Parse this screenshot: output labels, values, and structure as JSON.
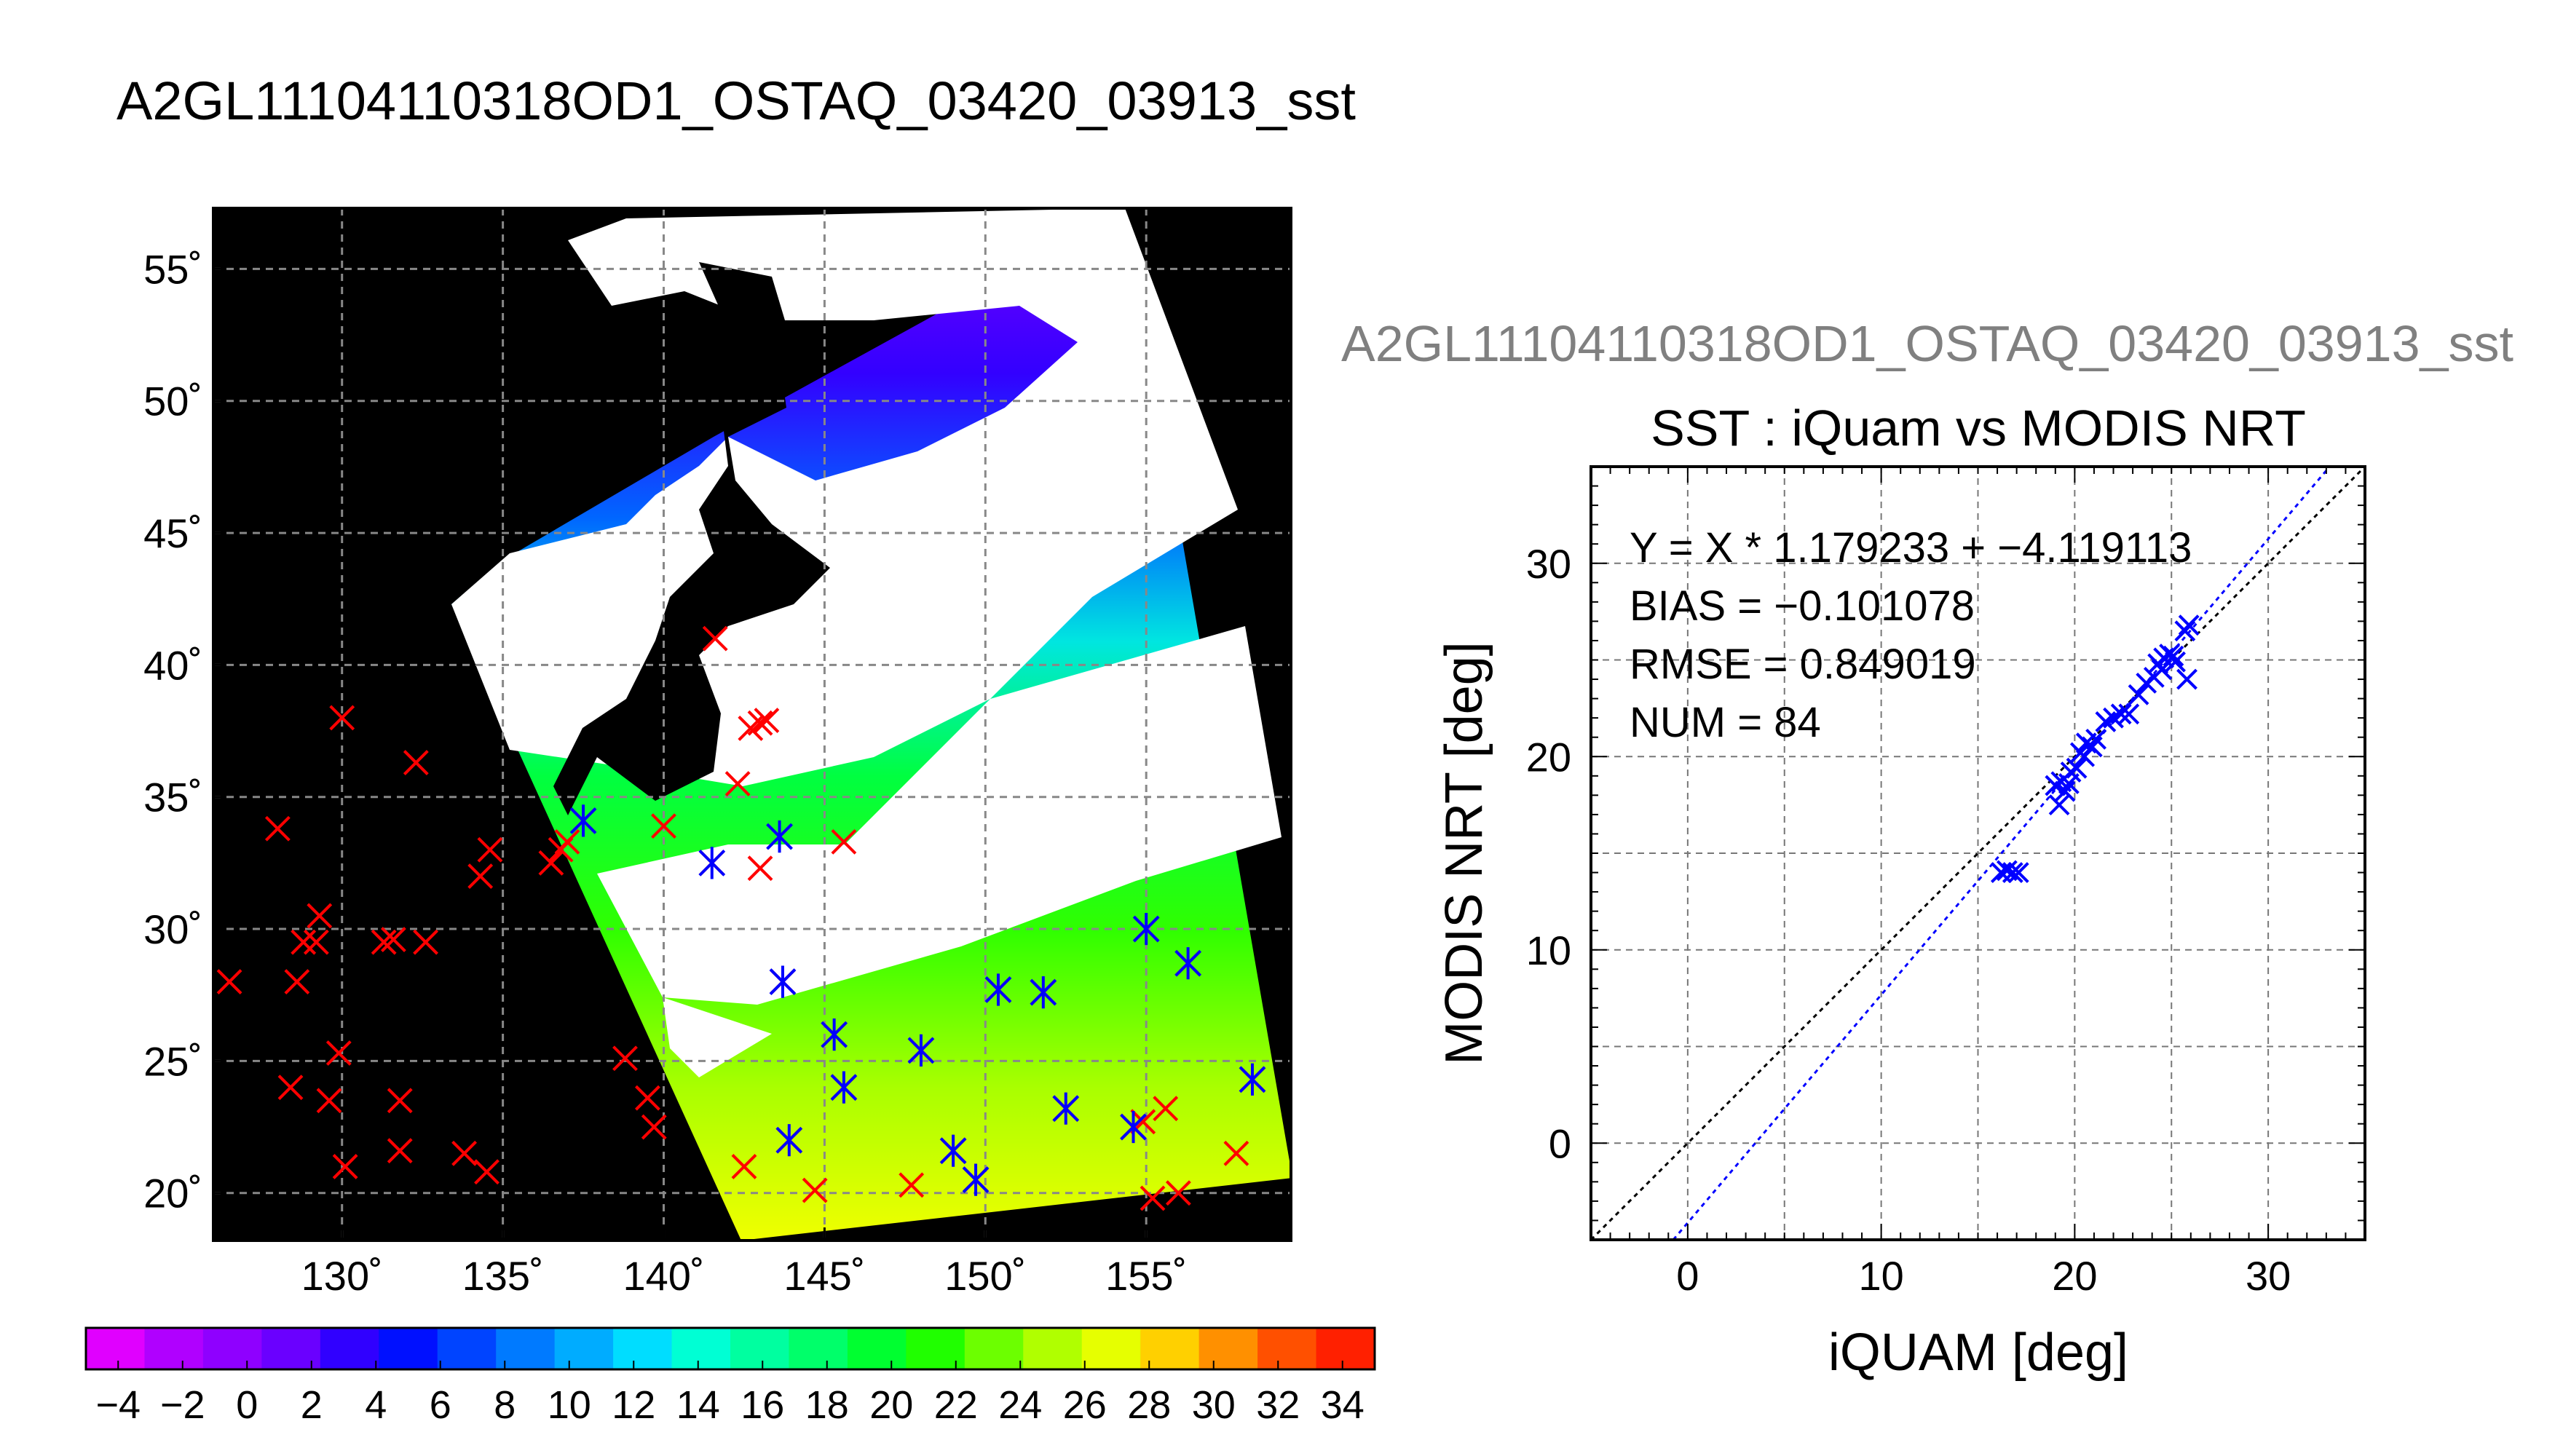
{
  "figure": {
    "title": "A2GL11104110318OD1_OSTAQ_03420_03913_sst",
    "subtitle": "A2GL11104110318OD1_OSTAQ_03420_03913_sst"
  },
  "colors": {
    "land": "#000000",
    "cloud": "#ffffff",
    "buoy_marker": "#ff0000",
    "matchup_marker": "#0000ff",
    "fit_line": "#0000ff",
    "one_to_one_line": "#000000",
    "subtitle": "#808080"
  },
  "chart_data": [
    {
      "type": "map",
      "x_ticks": [
        "130˚",
        "135˚",
        "140˚",
        "145˚",
        "150˚",
        "155˚"
      ],
      "y_ticks": [
        "55˚",
        "50˚",
        "45˚",
        "40˚",
        "35˚",
        "30˚",
        "25˚",
        "20˚"
      ],
      "x_tick_values": [
        130,
        135,
        140,
        145,
        150,
        155
      ],
      "y_tick_values": [
        55,
        50,
        45,
        40,
        35,
        30,
        25,
        20
      ],
      "xlim": [
        126,
        159.5
      ],
      "ylim": [
        18.2,
        57.3
      ],
      "grid": true,
      "in_situ_points": [
        [
          126.5,
          28
        ],
        [
          128,
          33.8
        ],
        [
          128.6,
          28
        ],
        [
          128.4,
          24
        ],
        [
          128.8,
          29.5
        ],
        [
          129.2,
          29.5
        ],
        [
          129.3,
          30.5
        ],
        [
          129.6,
          23.5
        ],
        [
          129.9,
          25.3
        ],
        [
          130,
          38
        ],
        [
          130.1,
          21
        ],
        [
          131.3,
          29.5
        ],
        [
          131.6,
          29.6
        ],
        [
          131.8,
          23.5
        ],
        [
          131.8,
          21.6
        ],
        [
          132.3,
          36.3
        ],
        [
          132.6,
          29.5
        ],
        [
          133.8,
          21.5
        ],
        [
          134.3,
          32
        ],
        [
          134.6,
          33
        ],
        [
          134.5,
          20.8
        ],
        [
          136.5,
          32.5
        ],
        [
          136.8,
          33
        ],
        [
          137,
          33.3
        ],
        [
          137.5,
          34.1
        ],
        [
          138.8,
          25.1
        ],
        [
          139.5,
          23.6
        ],
        [
          139.7,
          22.5
        ],
        [
          140,
          33.9
        ],
        [
          141.6,
          41
        ],
        [
          141.5,
          32.5
        ],
        [
          142.3,
          35.5
        ],
        [
          142.7,
          37.6
        ],
        [
          143,
          37.8
        ],
        [
          142.5,
          21
        ],
        [
          143,
          32.3
        ],
        [
          143.2,
          37.9
        ],
        [
          143.6,
          33.5
        ],
        [
          143.7,
          28
        ],
        [
          143.9,
          22
        ],
        [
          144.7,
          20.1
        ],
        [
          145.3,
          26
        ],
        [
          145.6,
          24
        ],
        [
          145.6,
          33.3
        ],
        [
          147.7,
          20.3
        ],
        [
          148,
          25.4
        ],
        [
          149,
          21.6
        ],
        [
          149.7,
          20.5
        ],
        [
          150.4,
          27.7
        ],
        [
          151.8,
          27.6
        ],
        [
          152.5,
          23.2
        ],
        [
          154.6,
          22.5
        ],
        [
          154.9,
          22.7
        ],
        [
          155,
          30
        ],
        [
          155.2,
          19.8
        ],
        [
          155.6,
          23.2
        ],
        [
          156,
          20
        ],
        [
          156.3,
          28.7
        ],
        [
          157.8,
          21.5
        ],
        [
          158.3,
          24.3
        ]
      ],
      "matchup_points": [
        [
          137.5,
          34.1
        ],
        [
          141.5,
          32.5
        ],
        [
          143.6,
          33.5
        ],
        [
          143.7,
          28
        ],
        [
          143.9,
          22
        ],
        [
          145.3,
          26
        ],
        [
          145.6,
          24
        ],
        [
          148,
          25.4
        ],
        [
          149,
          21.6
        ],
        [
          149.7,
          20.5
        ],
        [
          150.4,
          27.7
        ],
        [
          151.8,
          27.6
        ],
        [
          152.5,
          23.2
        ],
        [
          154.6,
          22.5
        ],
        [
          155,
          30
        ],
        [
          156.3,
          28.7
        ],
        [
          158.3,
          24.3
        ]
      ]
    },
    {
      "type": "scatter",
      "title": "SST : iQuam vs MODIS NRT",
      "xlabel": "iQUAM [deg]",
      "ylabel": "MODIS NRT [deg]",
      "xlim": [
        -5,
        35
      ],
      "ylim": [
        -5,
        35
      ],
      "x_ticks": [
        "0",
        "10",
        "20",
        "30"
      ],
      "y_ticks": [
        "0",
        "10",
        "20",
        "30"
      ],
      "x_tick_values": [
        0,
        10,
        20,
        30
      ],
      "y_tick_values": [
        0,
        10,
        20,
        30
      ],
      "grid": true,
      "annotations": [
        "Y = X * 1.179233 + −4.119113",
        "BIAS = −0.101078",
        "RMSE = 0.849019",
        "NUM = 84"
      ],
      "fit": {
        "slope": 1.179233,
        "intercept": -4.119113
      },
      "points": [
        [
          16.2,
          14
        ],
        [
          16.5,
          14.1
        ],
        [
          16.8,
          14
        ],
        [
          17.1,
          14
        ],
        [
          19,
          18.5
        ],
        [
          19.2,
          17.5
        ],
        [
          19.3,
          18.7
        ],
        [
          19.5,
          18.2
        ],
        [
          19.7,
          18.6
        ],
        [
          19.8,
          19.2
        ],
        [
          20.1,
          19.4
        ],
        [
          20.3,
          20.2
        ],
        [
          20.5,
          20
        ],
        [
          20.6,
          20.7
        ],
        [
          20.9,
          20.5
        ],
        [
          21.1,
          20.9
        ],
        [
          21.6,
          21.8
        ],
        [
          22,
          22
        ],
        [
          22.4,
          22.2
        ],
        [
          22.8,
          22.2
        ],
        [
          23.3,
          23.2
        ],
        [
          23.7,
          23.8
        ],
        [
          24.1,
          24.1
        ],
        [
          24.3,
          24.8
        ],
        [
          24.5,
          24.5
        ],
        [
          24.6,
          25.1
        ],
        [
          24.9,
          25.3
        ],
        [
          25.1,
          25.2
        ],
        [
          25.2,
          24.9
        ],
        [
          25.7,
          26.5
        ],
        [
          25.9,
          26.8
        ],
        [
          25.8,
          24
        ]
      ]
    },
    {
      "type": "colorbar",
      "tick_labels": [
        "−4",
        "−2",
        "0",
        "2",
        "4",
        "6",
        "8",
        "10",
        "12",
        "14",
        "16",
        "18",
        "20",
        "22",
        "24",
        "26",
        "28",
        "30",
        "32",
        "34"
      ],
      "range": [
        -5,
        35
      ],
      "step": 2,
      "colors": [
        "#e000ff",
        "#b000ff",
        "#8f00ff",
        "#6a00ff",
        "#3000ff",
        "#0010ff",
        "#0044ff",
        "#007aff",
        "#00acff",
        "#00ddff",
        "#00ffd4",
        "#00ffa0",
        "#00ff6a",
        "#00ff30",
        "#20ff00",
        "#6cff00",
        "#b0ff00",
        "#e6ff00",
        "#ffd000",
        "#ff9000",
        "#ff5000",
        "#ff2000"
      ]
    }
  ]
}
